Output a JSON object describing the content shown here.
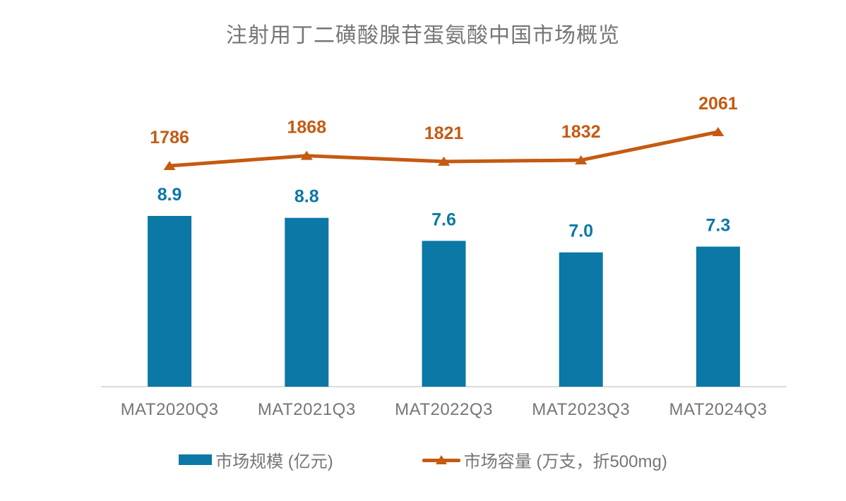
{
  "colors": {
    "bar": "#0B78A5",
    "line": "#C55A11",
    "text": "#767676",
    "axis": "#DCDCDC",
    "background": "#FFFFFF"
  },
  "chart_data": {
    "type": "bar+line-combo",
    "title": "注射用丁二磺酸腺苷蛋氨酸中国市场概览",
    "categories": [
      "MAT2020Q3",
      "MAT2021Q3",
      "MAT2022Q3",
      "MAT2023Q3",
      "MAT2024Q3"
    ],
    "series": [
      {
        "name": "市场规模 (亿元)",
        "type": "bar",
        "values": [
          8.9,
          8.8,
          7.6,
          7.0,
          7.3
        ],
        "labels": [
          "8.9",
          "8.8",
          "7.6",
          "7.0",
          "7.3"
        ],
        "color": "#0B78A5"
      },
      {
        "name": "市场容量 (万支，折500mg)",
        "type": "line",
        "marker": "triangle-up",
        "values": [
          1786,
          1868,
          1821,
          1832,
          2061
        ],
        "labels": [
          "1786",
          "1868",
          "1821",
          "1832",
          "2061"
        ],
        "color": "#C55A11"
      }
    ],
    "data_labels": true,
    "grid": false,
    "y_axis_visible": false,
    "legend_position": "bottom"
  }
}
